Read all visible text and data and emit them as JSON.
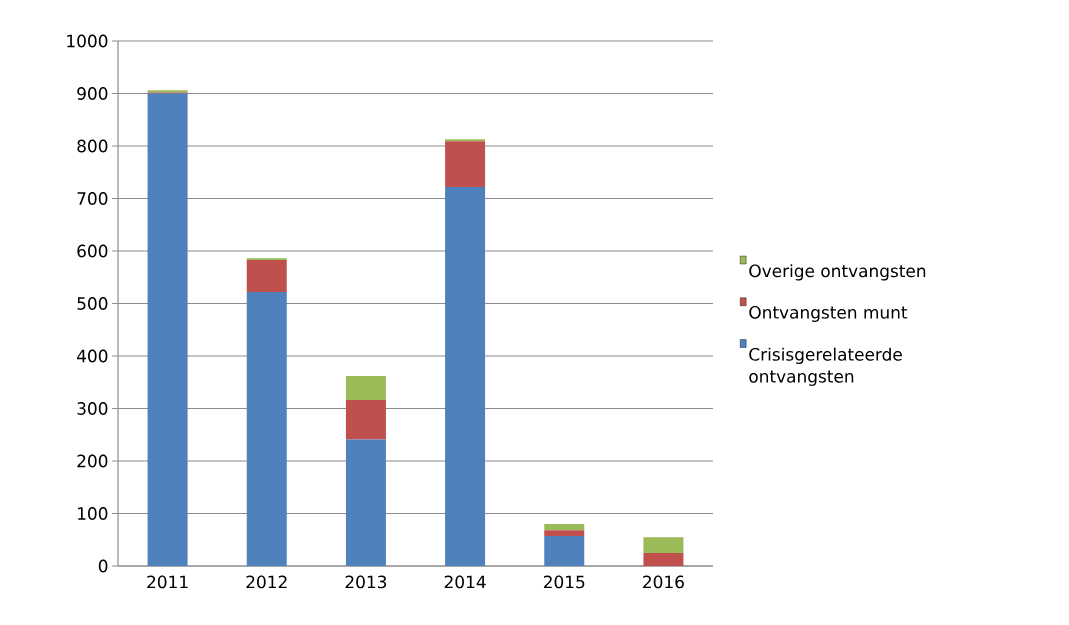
{
  "chart_data": {
    "type": "bar",
    "stacked": true,
    "categories": [
      "2011",
      "2012",
      "2013",
      "2014",
      "2015",
      "2016"
    ],
    "series": [
      {
        "name": "Crisisgerelateerde ontvangsten",
        "color": "#4f81bd",
        "values": [
          900,
          522,
          241,
          722,
          57,
          0
        ]
      },
      {
        "name": "Ontvangsten munt",
        "color": "#c0504d",
        "values": [
          2,
          61,
          75,
          87,
          11,
          25
        ]
      },
      {
        "name": "Overige ontvangsten",
        "color": "#9bbb59",
        "values": [
          4,
          3,
          46,
          4,
          12,
          30
        ]
      }
    ],
    "ylim": [
      0,
      1000
    ],
    "yticks": [
      0,
      100,
      200,
      300,
      400,
      500,
      600,
      700,
      800,
      900,
      1000
    ],
    "grid": "y",
    "legend": "right"
  }
}
